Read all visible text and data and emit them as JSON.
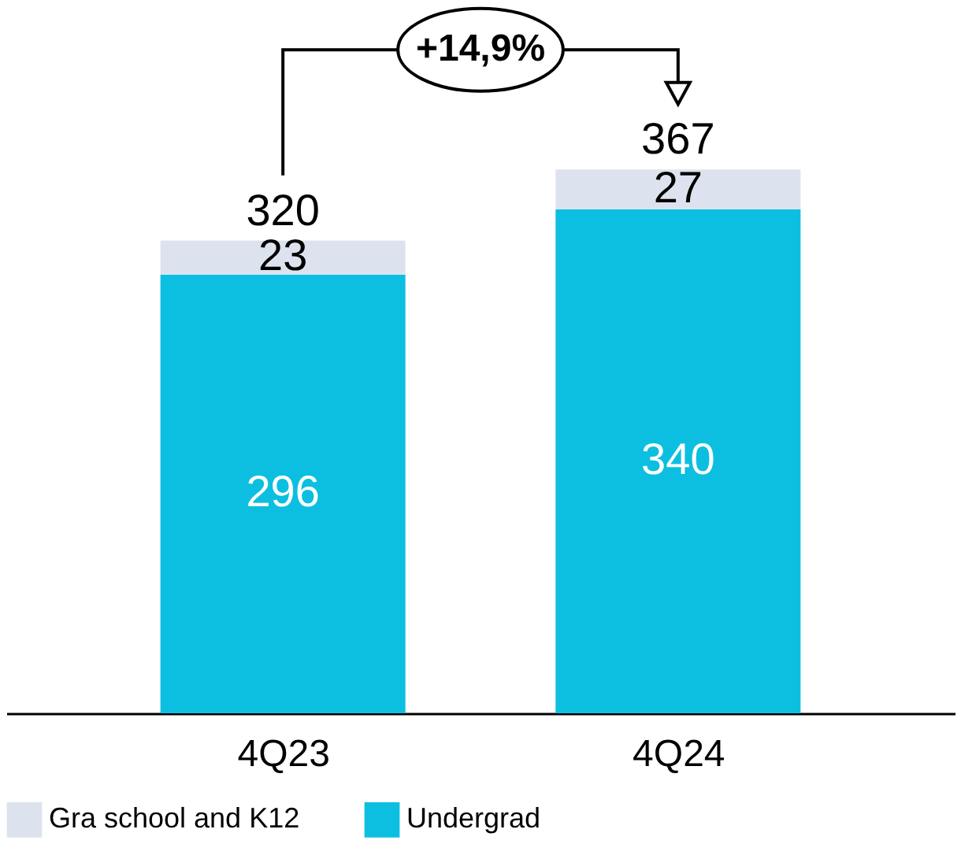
{
  "chart_data": {
    "type": "bar",
    "stacked": true,
    "categories": [
      "4Q23",
      "4Q24"
    ],
    "series": [
      {
        "name": "Undergrad",
        "color": "#0cbfe0",
        "values": [
          296,
          340
        ]
      },
      {
        "name": "Gra school and K12",
        "color": "#dde3ee",
        "values": [
          23,
          27
        ]
      }
    ],
    "data_labels": true,
    "totals": [
      "320",
      "367"
    ],
    "legend": "bottom",
    "grid": false,
    "annotations": [
      "+14,9%"
    ]
  }
}
